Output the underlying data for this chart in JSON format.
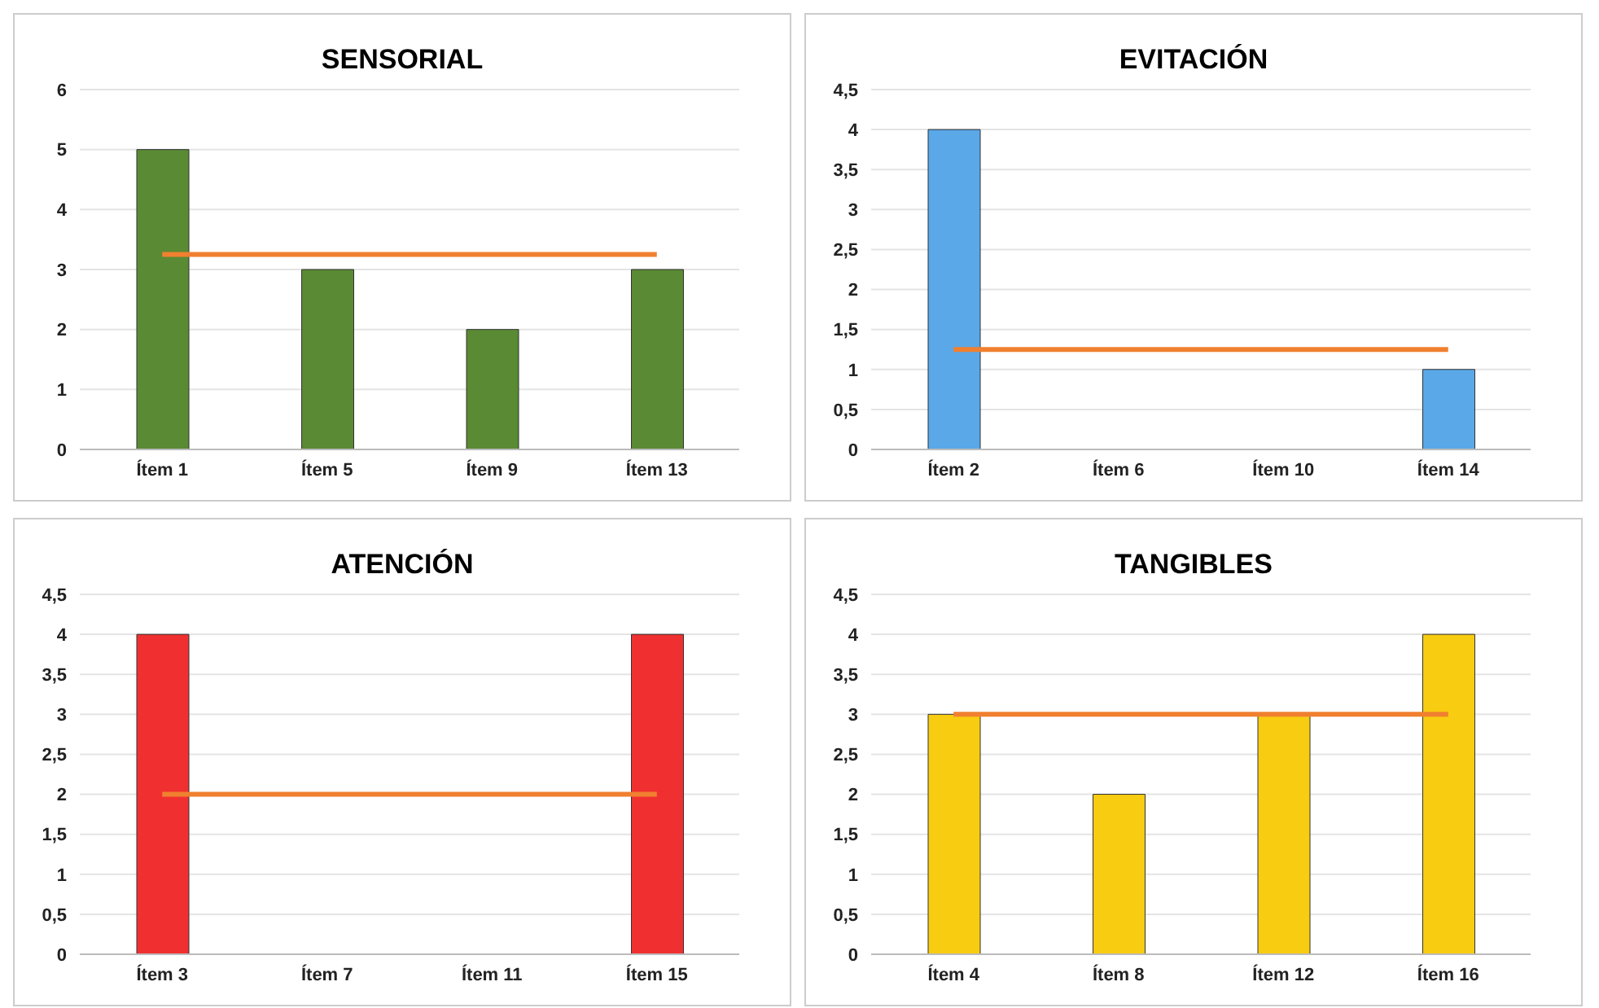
{
  "chart_data": [
    {
      "type": "bar",
      "title": "SENSORIAL",
      "categories": [
        "Ítem 1",
        "Ítem 5",
        "Ítem 9",
        "Ítem 13"
      ],
      "values": [
        5,
        3,
        2,
        3
      ],
      "color": "#5a8a34",
      "ylim": [
        0,
        6
      ],
      "yticks": [
        0,
        1,
        2,
        3,
        4,
        5,
        6
      ],
      "grid": "y",
      "ref_lines": [
        {
          "axis": "y",
          "value": 3.25,
          "color": "#f08030"
        }
      ]
    },
    {
      "type": "bar",
      "title": "EVITACIÓN",
      "categories": [
        "Ítem 2",
        "Ítem 6",
        "Ítem 10",
        "Ítem 14"
      ],
      "values": [
        4,
        0,
        0,
        1
      ],
      "color": "#5aa8e8",
      "ylim": [
        0,
        4.5
      ],
      "yticks": [
        0,
        {
          "value": 0.5,
          "label": "0,5"
        },
        1,
        {
          "value": 1.5,
          "label": "1,5"
        },
        2,
        {
          "value": 2.5,
          "label": "2,5"
        },
        3,
        {
          "value": 3.5,
          "label": "3,5"
        },
        4,
        {
          "value": 4.5,
          "label": "4,5"
        }
      ],
      "grid": "y",
      "ref_lines": [
        {
          "axis": "y",
          "value": 1.25,
          "color": "#f08030"
        }
      ]
    },
    {
      "type": "bar",
      "title": "ATENCIÓN",
      "categories": [
        "Ítem 3",
        "Ítem 7",
        "Ítem 11",
        "Ítem 15"
      ],
      "values": [
        4,
        0,
        0,
        4
      ],
      "color": "#f03030",
      "ylim": [
        0,
        4.5
      ],
      "yticks": [
        0,
        {
          "value": 0.5,
          "label": "0,5"
        },
        1,
        {
          "value": 1.5,
          "label": "1,5"
        },
        2,
        {
          "value": 2.5,
          "label": "2,5"
        },
        3,
        {
          "value": 3.5,
          "label": "3,5"
        },
        4,
        {
          "value": 4.5,
          "label": "4,5"
        }
      ],
      "grid": "y",
      "ref_lines": [
        {
          "axis": "y",
          "value": 2,
          "color": "#f08030"
        }
      ]
    },
    {
      "type": "bar",
      "title": "TANGIBLES",
      "categories": [
        "Ítem 4",
        "Ítem 8",
        "Ítem 12",
        "Ítem 16"
      ],
      "values": [
        3,
        2,
        3,
        4
      ],
      "color": "#f8cc10",
      "ylim": [
        0,
        4.5
      ],
      "yticks": [
        0,
        {
          "value": 0.5,
          "label": "0,5"
        },
        1,
        {
          "value": 1.5,
          "label": "1,5"
        },
        2,
        {
          "value": 2.5,
          "label": "2,5"
        },
        3,
        {
          "value": 3.5,
          "label": "3,5"
        },
        4,
        {
          "value": 4.5,
          "label": "4,5"
        }
      ],
      "grid": "y",
      "ref_lines": [
        {
          "axis": "y",
          "value": 3,
          "color": "#f08030"
        }
      ]
    }
  ]
}
